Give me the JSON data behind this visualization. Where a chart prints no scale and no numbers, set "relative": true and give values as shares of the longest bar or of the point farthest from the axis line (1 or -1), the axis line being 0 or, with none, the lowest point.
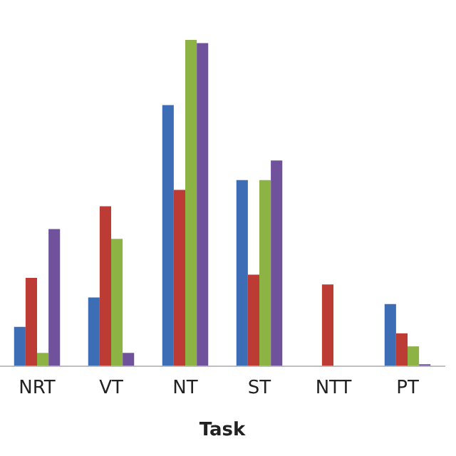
{
  "chart_data": {
    "type": "bar",
    "relative": true,
    "xlabel": "Task",
    "categories": [
      "NRT",
      "VT",
      "NT",
      "ST",
      "NTT",
      "PT"
    ],
    "series": [
      {
        "color": "#3d6db4",
        "values": [
          0.12,
          0.21,
          0.8,
          0.57,
          0,
          0.19
        ]
      },
      {
        "color": "#bc3b35",
        "values": [
          0.27,
          0.49,
          0.54,
          0.28,
          0.25,
          0.1
        ]
      },
      {
        "color": "#8cb344",
        "values": [
          0.04,
          0.39,
          1,
          0.57,
          0,
          0.06
        ]
      },
      {
        "color": "#6f519c",
        "values": [
          0.42,
          0.04,
          0.99,
          0.63,
          0,
          0.005
        ]
      }
    ],
    "grid": false,
    "legend": false
  }
}
